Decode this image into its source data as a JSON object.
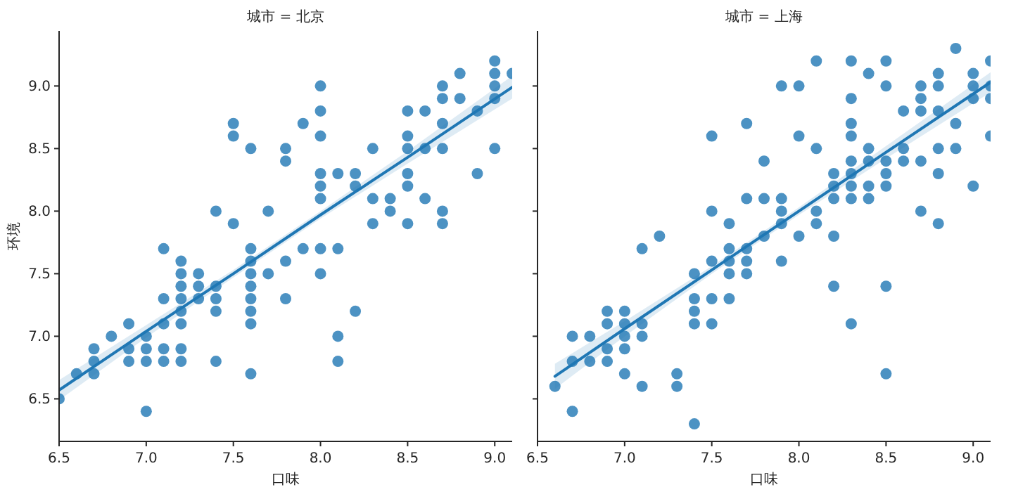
{
  "chart_data": [
    {
      "type": "scatter",
      "title": "城市 = 北京",
      "xlabel": "口味",
      "ylabel": "环境",
      "xlim": [
        6.5,
        9.1
      ],
      "ylim": [
        6.16,
        9.44
      ],
      "xticks": [
        6.5,
        {
          "value": 7,
          "label": "7.0"
        },
        7.5,
        {
          "value": 8,
          "label": "8.0"
        },
        8.5,
        {
          "value": 9,
          "label": "9.0"
        }
      ],
      "yticks": [
        6.5,
        {
          "value": 7,
          "label": "7.0"
        },
        7.5,
        {
          "value": 8,
          "label": "8.0"
        },
        8.5,
        {
          "value": 9,
          "label": "9.0"
        }
      ],
      "series": [
        {
          "color": "#1f77b4",
          "marker": "circle",
          "x": [
            9.0,
            9.0,
            9.1,
            8.8,
            9.0,
            9.0,
            8.9,
            9.0,
            8.9,
            8.7,
            8.7,
            8.8,
            8.7,
            8.7,
            8.7,
            8.7,
            8.6,
            8.6,
            8.6,
            8.5,
            8.5,
            8.5,
            8.5,
            8.5,
            8.5,
            8.4,
            8.4,
            8.3,
            8.3,
            8.3,
            8.2,
            8.2,
            8.1,
            8.1,
            8.0,
            8.0,
            8.0,
            8.0,
            8.0,
            8.0,
            8.0,
            7.9,
            7.9,
            7.8,
            7.8,
            7.7,
            7.6,
            7.6,
            7.5,
            7.5,
            7.5,
            7.4,
            7.1,
            6.5,
            6.6,
            6.7,
            6.7,
            6.7,
            6.8,
            6.9,
            6.9,
            6.9,
            7.0,
            7.0,
            7.0,
            7.0,
            7.1,
            7.1,
            7.1,
            7.1,
            7.2,
            7.2,
            7.2,
            7.2,
            7.2,
            7.2,
            7.2,
            7.2,
            7.3,
            7.3,
            7.3,
            7.4,
            7.4,
            7.4,
            7.4,
            7.6,
            7.6,
            7.6,
            7.6,
            7.6,
            7.6,
            7.6,
            7.7,
            7.8,
            7.8,
            8.0,
            8.1,
            8.1,
            8.2
          ],
          "values": [
            9.2,
            9.1,
            9.1,
            9.1,
            9.0,
            8.9,
            8.8,
            8.5,
            8.3,
            9.0,
            8.9,
            8.9,
            8.7,
            8.5,
            8.0,
            7.9,
            8.8,
            8.5,
            8.1,
            8.8,
            8.6,
            8.5,
            8.3,
            8.2,
            7.9,
            8.1,
            8.0,
            8.5,
            8.1,
            7.9,
            8.3,
            8.2,
            8.3,
            7.7,
            9.0,
            8.8,
            8.6,
            8.3,
            8.2,
            8.1,
            7.7,
            8.7,
            7.7,
            8.5,
            8.4,
            8.0,
            8.5,
            7.7,
            8.7,
            8.6,
            7.9,
            8.0,
            7.7,
            6.5,
            6.7,
            6.9,
            6.8,
            6.7,
            7.0,
            7.1,
            6.9,
            6.8,
            7.0,
            6.9,
            6.8,
            6.4,
            7.3,
            7.1,
            6.9,
            6.8,
            7.6,
            7.5,
            7.4,
            7.3,
            7.2,
            7.1,
            6.9,
            6.8,
            7.5,
            7.4,
            7.3,
            7.4,
            7.3,
            7.2,
            6.8,
            7.6,
            7.5,
            7.4,
            7.3,
            7.2,
            7.1,
            6.7,
            7.5,
            7.6,
            7.3,
            7.5,
            7.0,
            6.8,
            7.2
          ]
        },
        {
          "type": "line",
          "color": "#1f77b4",
          "x": [
            6.5,
            7.0,
            7.5,
            8.0,
            8.5,
            9.1
          ],
          "values": [
            6.57,
            7.04,
            7.5,
            7.97,
            8.43,
            8.99
          ],
          "lower": [
            6.49,
            6.99,
            7.47,
            7.94,
            8.38,
            8.9
          ],
          "upper": [
            6.65,
            7.09,
            7.53,
            8.0,
            8.48,
            9.08
          ]
        }
      ]
    },
    {
      "type": "scatter",
      "title": "城市 = 上海",
      "xlabel": "口味",
      "tick_labels": "x",
      "xlim": [
        6.5,
        9.1
      ],
      "ylim": [
        6.16,
        9.44
      ],
      "xticks": [
        6.5,
        {
          "value": 7,
          "label": "7.0"
        },
        7.5,
        {
          "value": 8,
          "label": "8.0"
        },
        8.5,
        {
          "value": 9,
          "label": "9.0"
        }
      ],
      "yticks": [
        {
          "value": 6.5,
          "label": null
        },
        {
          "value": 7,
          "label": null
        },
        {
          "value": 7.5,
          "label": null
        },
        {
          "value": 8,
          "label": null
        },
        {
          "value": 8.5,
          "label": null
        },
        {
          "value": 9,
          "label": null
        }
      ],
      "series": [
        {
          "color": "#1f77b4",
          "marker": "circle",
          "x": [
            8.9,
            8.1,
            8.3,
            8.5,
            9.1,
            8.4,
            8.8,
            9.0,
            7.9,
            8.0,
            8.5,
            8.7,
            8.8,
            9.0,
            9.1,
            8.3,
            8.7,
            9.0,
            9.1,
            8.6,
            8.7,
            8.8,
            7.7,
            8.3,
            8.9,
            7.5,
            8.0,
            8.3,
            9.1,
            8.1,
            8.4,
            8.6,
            8.8,
            8.9,
            7.8,
            8.3,
            8.4,
            8.5,
            8.6,
            8.7,
            8.2,
            8.3,
            8.5,
            8.8,
            8.2,
            8.3,
            8.4,
            8.5,
            9.0,
            7.7,
            7.8,
            7.9,
            8.2,
            8.3,
            8.4,
            7.5,
            7.9,
            8.1,
            8.7,
            7.6,
            7.9,
            8.1,
            8.8,
            7.2,
            7.8,
            8.0,
            8.2,
            7.1,
            7.6,
            7.7,
            7.5,
            7.6,
            7.7,
            7.9,
            7.4,
            7.6,
            7.7,
            8.2,
            8.5,
            7.4,
            7.5,
            7.6,
            6.9,
            7.0,
            7.4,
            6.9,
            7.0,
            7.1,
            7.4,
            7.5,
            8.3,
            6.7,
            6.8,
            7.0,
            7.1,
            6.9,
            7.0,
            6.7,
            6.8,
            6.9,
            7.0,
            7.3,
            8.5,
            6.6,
            7.1,
            7.3,
            6.7,
            7.4
          ],
          "values": [
            9.3,
            9.2,
            9.2,
            9.2,
            9.2,
            9.1,
            9.1,
            9.1,
            9.0,
            9.0,
            9.0,
            9.0,
            9.0,
            9.0,
            9.0,
            8.9,
            8.9,
            8.9,
            8.9,
            8.8,
            8.8,
            8.8,
            8.7,
            8.7,
            8.7,
            8.6,
            8.6,
            8.6,
            8.6,
            8.5,
            8.5,
            8.5,
            8.5,
            8.5,
            8.4,
            8.4,
            8.4,
            8.4,
            8.4,
            8.4,
            8.3,
            8.3,
            8.3,
            8.3,
            8.2,
            8.2,
            8.2,
            8.2,
            8.2,
            8.1,
            8.1,
            8.1,
            8.1,
            8.1,
            8.1,
            8.0,
            8.0,
            8.0,
            8.0,
            7.9,
            7.9,
            7.9,
            7.9,
            7.8,
            7.8,
            7.8,
            7.8,
            7.7,
            7.7,
            7.7,
            7.6,
            7.6,
            7.6,
            7.6,
            7.5,
            7.5,
            7.5,
            7.4,
            7.4,
            7.3,
            7.3,
            7.3,
            7.2,
            7.2,
            7.2,
            7.1,
            7.1,
            7.1,
            7.1,
            7.1,
            7.1,
            7.0,
            7.0,
            7.0,
            7.0,
            6.9,
            6.9,
            6.8,
            6.8,
            6.8,
            6.7,
            6.7,
            6.7,
            6.6,
            6.6,
            6.6,
            6.4,
            6.3
          ]
        },
        {
          "type": "line",
          "color": "#1f77b4",
          "x": [
            6.6,
            7.0,
            7.5,
            8.0,
            8.5,
            9.1
          ],
          "values": [
            6.68,
            7.06,
            7.53,
            8.0,
            8.47,
            9.03
          ],
          "lower": [
            6.58,
            7.0,
            7.5,
            7.97,
            8.42,
            8.95
          ],
          "upper": [
            6.78,
            7.12,
            7.56,
            8.03,
            8.52,
            9.11
          ]
        }
      ]
    }
  ]
}
